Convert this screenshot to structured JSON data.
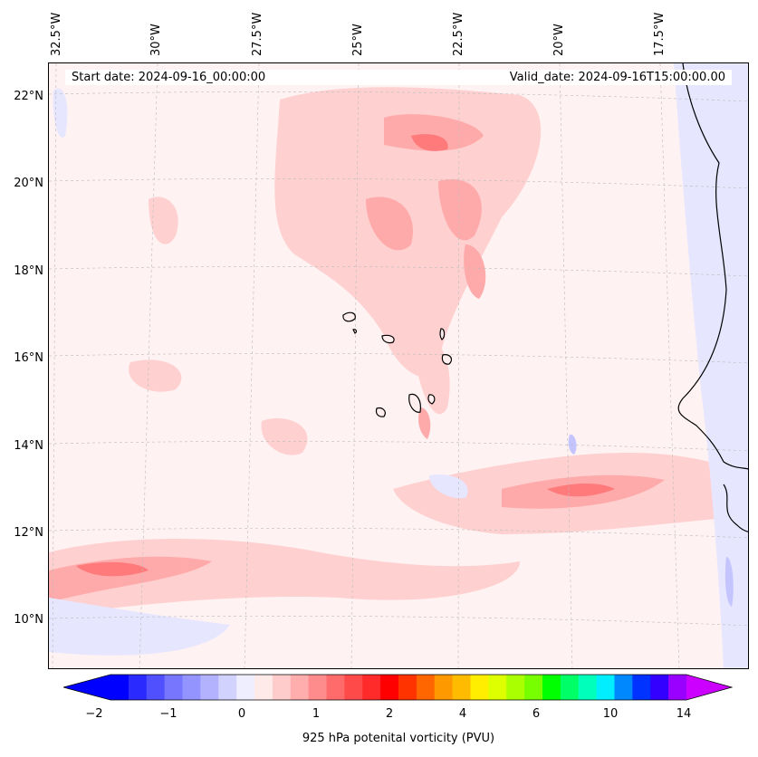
{
  "map": {
    "start_label": "Start date: 2024-09-16_00:00:00",
    "valid_label": "Valid_date: 2024-09-16T15:00:00.00",
    "lon_labels": [
      "32.5°W",
      "30°W",
      "27.5°W",
      "25°W",
      "22.5°W",
      "20°W",
      "17.5°W"
    ],
    "lat_labels": [
      "22°N",
      "20°N",
      "18°N",
      "16°N",
      "14°N",
      "12°N",
      "10°N"
    ],
    "extent": {
      "lon_min": -33.0,
      "lon_max": -15.5,
      "lat_min": 9.0,
      "lat_max": 22.8
    },
    "field": "925 hPa potential vorticity",
    "background_color": "#fff2f2",
    "coastline_color": "#000000",
    "gridlines": true
  },
  "colorbar": {
    "label": "925 hPa potenital vorticity (PVU)",
    "tick_labels": [
      "−2",
      "−1",
      "0",
      "1",
      "2",
      "4",
      "6",
      "10",
      "14"
    ],
    "extend": "both",
    "colors": [
      "#0000ff",
      "#2a2aff",
      "#5050ff",
      "#7676ff",
      "#9494ff",
      "#b2b2ff",
      "#d2d2ff",
      "#eeeeff",
      "#ffeaea",
      "#ffcccc",
      "#ffadad",
      "#ff8c8c",
      "#ff6b6b",
      "#ff4a4a",
      "#ff2a2a",
      "#ff0000",
      "#ff3300",
      "#ff6600",
      "#ff9900",
      "#ffbb00",
      "#ffee00",
      "#ddff00",
      "#aaff00",
      "#77ff00",
      "#00ff00",
      "#00ff66",
      "#00ffbb",
      "#00eeff",
      "#0088ff",
      "#0033ff",
      "#3300ff",
      "#9900ff"
    ],
    "min_color": "#0000ff",
    "max_color": "#cc00ff"
  }
}
